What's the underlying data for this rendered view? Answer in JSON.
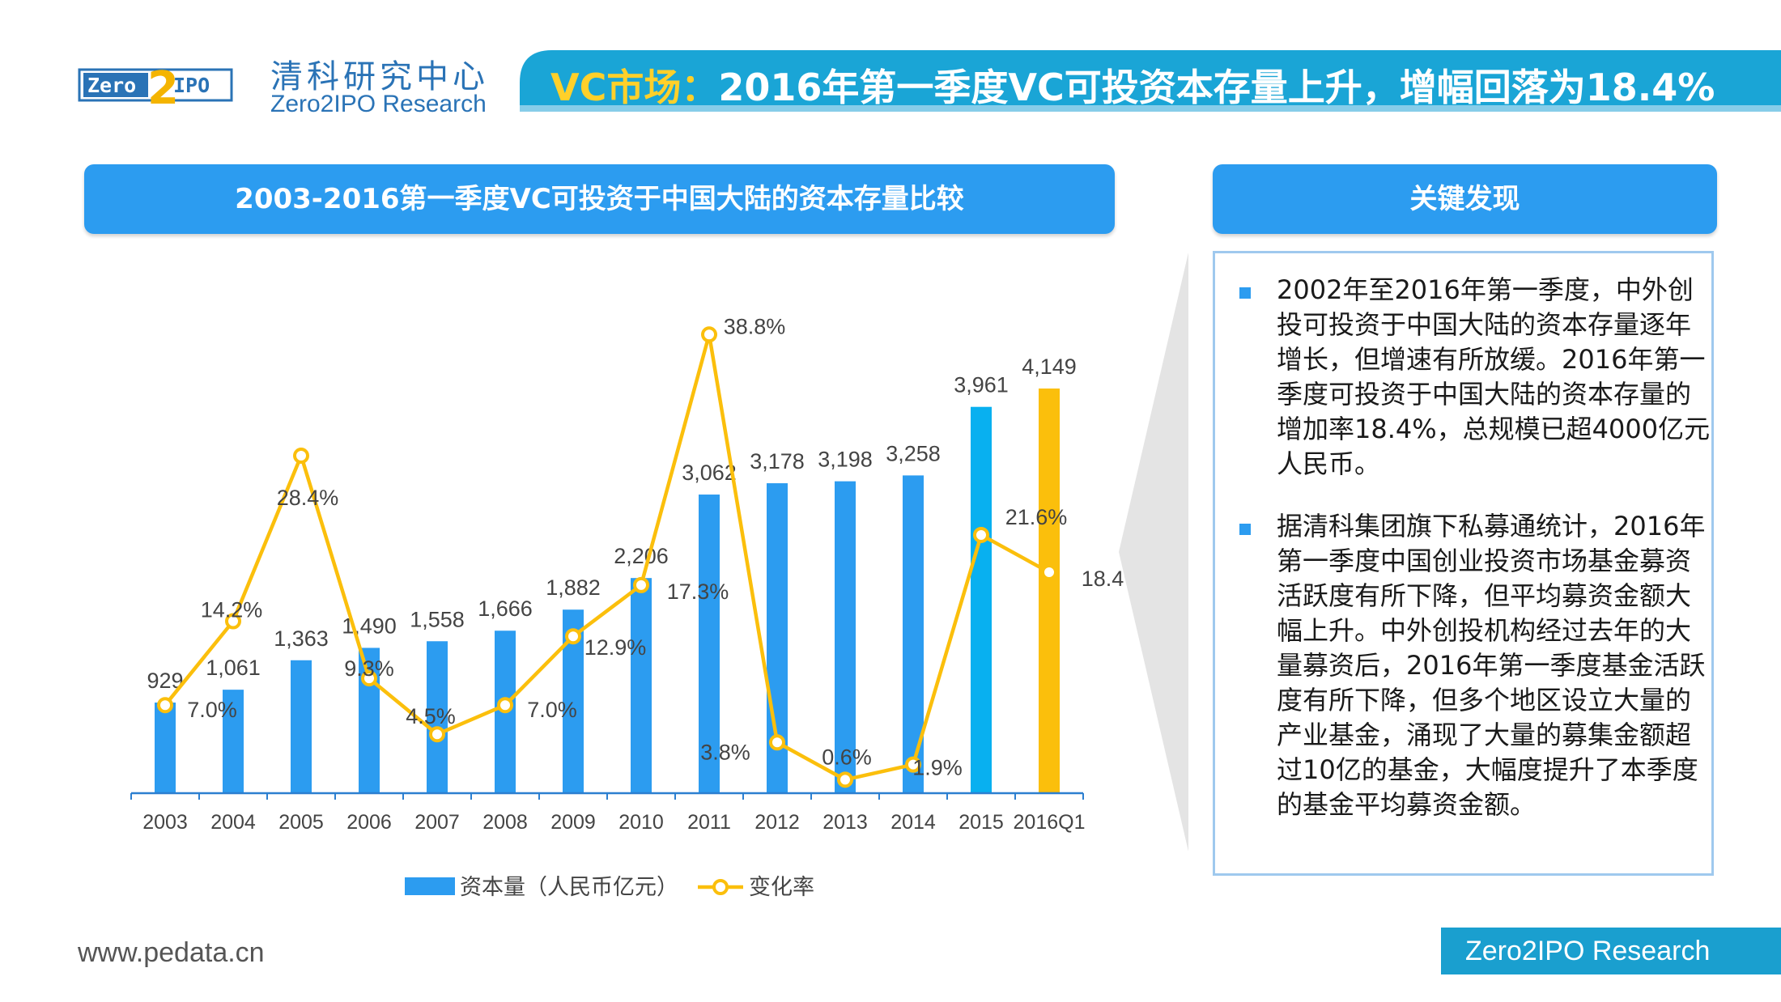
{
  "header": {
    "logo_text_left": "Zero",
    "logo_text_right": "IPO",
    "logo_digit": "2",
    "brand_cn": "清科研究中心",
    "brand_en": "Zero2IPO Research",
    "title_highlight": "VC市场：",
    "title_rest": "2016年第一季度VC可投资本存量上升，增幅回落为18.4%"
  },
  "chart_section": {
    "heading": "2003-2016第一季度VC可投资于中国大陆的资本存量比较"
  },
  "findings": {
    "heading": "关键发现",
    "items": [
      "2002年至2016年第一季度，中外创投可投资于中国大陆的资本存量逐年增长，但增速有所放缓。2016年第一季度可投资于中国大陆的资本存量的增加率18.4%，总规模已超4000亿元人民币。",
      "据清科集团旗下私募通统计，2016年第一季度中国创业投资市场基金募资活跃度有所下降，但平均募资金额大幅上升。中外创投机构经过去年的大量募资后，2016年第一季度基金活跃度有所下降，但多个地区设立大量的产业基金，涌现了大量的募集金额超过10亿的基金，大幅度提升了本季度的基金平均募资金额。"
    ]
  },
  "footer": {
    "website": "www.pedata.cn",
    "brand": "Zero2IPO Research"
  },
  "colors": {
    "bar": "#2c9cf0",
    "bar_last": "#fbbf0c",
    "bar_2015": "#08b0f0",
    "line": "#fbbf0c",
    "banner": "#1aa5d6"
  },
  "chart_data": {
    "type": "bar+line",
    "title": "2003-2016第一季度VC可投资于中国大陆的资本存量比较",
    "categories": [
      "2003",
      "2004",
      "2005",
      "2006",
      "2007",
      "2008",
      "2009",
      "2010",
      "2011",
      "2012",
      "2013",
      "2014",
      "2015",
      "2016Q1"
    ],
    "series": [
      {
        "name": "资本量（人民币亿元）",
        "type": "bar",
        "values": [
          929,
          1061,
          1363,
          1490,
          1558,
          1666,
          1882,
          2206,
          3062,
          3178,
          3198,
          3258,
          3961,
          4149
        ],
        "labels": [
          "929",
          "1,061",
          "1,363",
          "1,490",
          "1,558",
          "1,666",
          "1,882",
          "2,206",
          "3,062",
          "3,178",
          "3,198",
          "3,258",
          "3,961",
          "4,149"
        ]
      },
      {
        "name": "变化率",
        "type": "line",
        "values": [
          7.0,
          14.2,
          28.4,
          9.3,
          4.5,
          7.0,
          12.9,
          17.3,
          38.8,
          3.8,
          0.6,
          1.9,
          21.6,
          18.4
        ],
        "labels": [
          "7.0%",
          "14.2%",
          "28.4%",
          "9.3%",
          "4.5%",
          "7.0%",
          "12.9%",
          "17.3%",
          "38.8%",
          "3.8%",
          "0.6%",
          "1.9%",
          "21.6%",
          "18.4%"
        ]
      }
    ],
    "legend": [
      "资本量（人民币亿元）",
      "变化率"
    ],
    "legend_position": "bottom"
  }
}
